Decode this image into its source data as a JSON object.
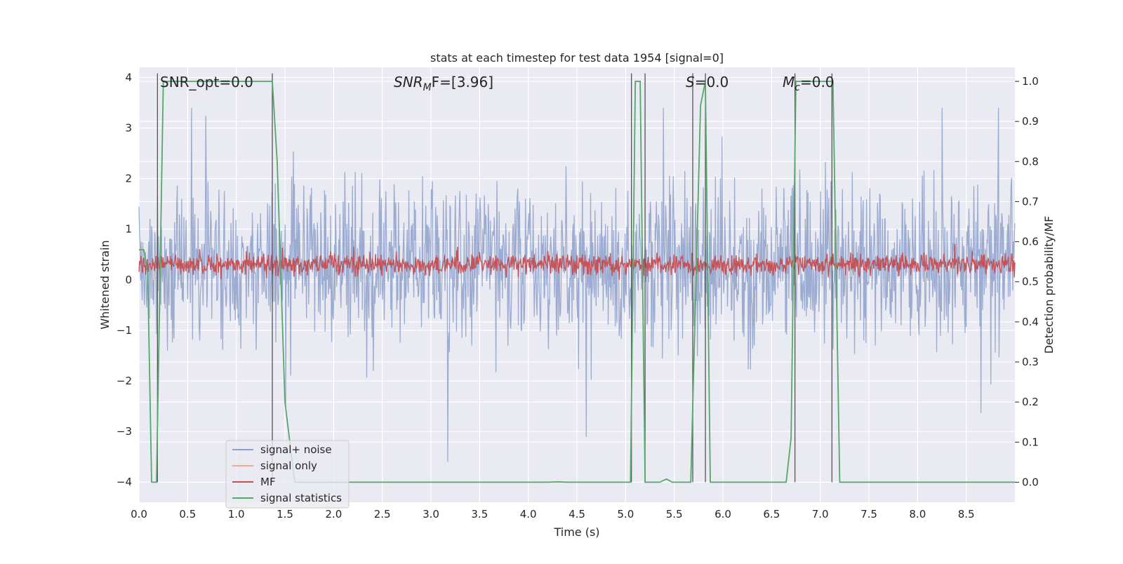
{
  "chart_data": {
    "type": "line",
    "title": "stats at each timestep for test data 1954 [signal=0]",
    "xlabel": "Time (s)",
    "ylabel_left": "Whitened strain",
    "ylabel_right": "Detection probability/MF",
    "xlim": [
      0.0,
      9.0
    ],
    "ylim_left": [
      -4.4,
      4.2
    ],
    "ylim_right": [
      -0.05,
      1.035
    ],
    "x_ticks": [
      "0.0",
      "0.5",
      "1.0",
      "1.5",
      "2.0",
      "2.5",
      "3.0",
      "3.5",
      "4.0",
      "4.5",
      "5.0",
      "5.5",
      "6.0",
      "6.5",
      "7.0",
      "7.5",
      "8.0",
      "8.5"
    ],
    "x_tick_values": [
      0.0,
      0.5,
      1.0,
      1.5,
      2.0,
      2.5,
      3.0,
      3.5,
      4.0,
      4.5,
      5.0,
      5.5,
      6.0,
      6.5,
      7.0,
      7.5,
      8.0,
      8.5
    ],
    "y_left_ticks": [
      "4",
      "3",
      "2",
      "1",
      "0",
      "−1",
      "−2",
      "−3",
      "−4"
    ],
    "y_left_tick_values": [
      4,
      3,
      2,
      1,
      0,
      -1,
      -2,
      -3,
      -4
    ],
    "y_right_ticks": [
      "1.0",
      "0.9",
      "0.8",
      "0.7",
      "0.6",
      "0.5",
      "0.4",
      "0.3",
      "0.2",
      "0.1",
      "0.0"
    ],
    "y_right_tick_values": [
      1.0,
      0.9,
      0.8,
      0.7,
      0.6,
      0.5,
      0.4,
      0.3,
      0.2,
      0.1,
      0.0
    ],
    "grid": true,
    "legend_position": "lower-left",
    "series": [
      {
        "name": "signal+ noise",
        "color": "#8da0cb",
        "axis": "left",
        "kind": "noise",
        "band": [
          -1.7,
          2.3
        ],
        "envelope": [
          -3.6,
          3.4
        ]
      },
      {
        "name": "signal only",
        "color": "#e8a88a",
        "axis": "left",
        "kind": "flat",
        "value": 0.0
      },
      {
        "name": "MF",
        "color": "#c44e52",
        "axis": "left",
        "kind": "noise",
        "band": [
          0.05,
          0.55
        ],
        "envelope": [
          0.0,
          1.0
        ]
      },
      {
        "name": "signal statistics",
        "color": "#55a868",
        "axis": "right",
        "x": [
          0.0,
          0.05,
          0.09,
          0.13,
          0.18,
          0.25,
          1.37,
          1.42,
          1.5,
          1.6,
          4.2,
          4.3,
          4.4,
          5.05,
          5.1,
          5.15,
          5.2,
          5.25,
          5.35,
          5.42,
          5.48,
          5.6,
          5.67,
          5.77,
          5.82,
          5.87,
          6.65,
          6.7,
          6.75,
          6.8,
          7.13,
          7.2,
          9.0
        ],
        "y": [
          0.58,
          0.58,
          0.52,
          0.0,
          0.0,
          1.0,
          1.0,
          0.8,
          0.2,
          0.0,
          0.0,
          0.001,
          0.0,
          0.0,
          1.0,
          1.0,
          0.0,
          0.0,
          0.0,
          0.008,
          0.0,
          0.0,
          0.0,
          0.94,
          1.0,
          0.0,
          0.0,
          0.11,
          1.0,
          1.0,
          1.0,
          0.0,
          0.0
        ]
      }
    ],
    "vertical_markers": [
      0.19,
      1.37,
      5.06,
      5.2,
      5.69,
      5.82,
      6.74,
      7.12
    ],
    "annotations": [
      {
        "text": "SNR_opt=0.0",
        "x": 0.2
      },
      {
        "text": "SNR_MF=[3.96]",
        "x": 2.6
      },
      {
        "text": "S=0.0",
        "x": 5.6
      },
      {
        "text": "M_c=0.0",
        "x": 6.6
      }
    ]
  },
  "annotation_parts": {
    "snr_opt": "SNR_opt=0.0",
    "snr_mf_main": "SNR",
    "snr_mf_sub": "M",
    "snr_mf_rest": "F=[3.96]",
    "s_main": "S",
    "s_rest": "=0.0",
    "mc_main": "M",
    "mc_sub": "c",
    "mc_rest": "=0.0"
  }
}
